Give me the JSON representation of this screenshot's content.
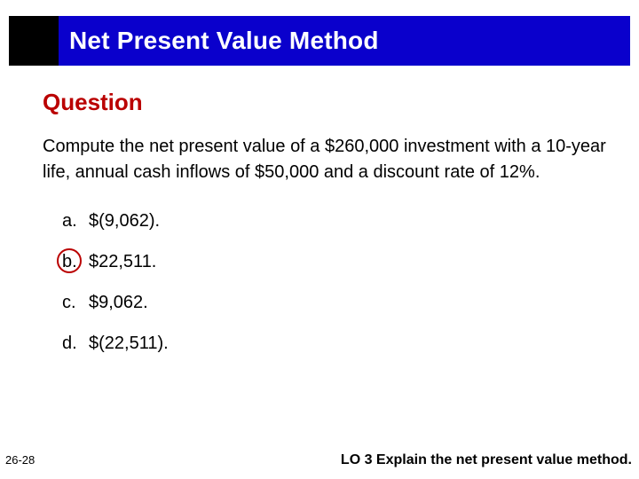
{
  "title_bar": {
    "background_color": "#0a00cc",
    "box_color": "#000000",
    "title": "Net Present Value Method",
    "title_color": "#ffffff",
    "title_fontsize": 28
  },
  "question": {
    "heading": "Question",
    "heading_color": "#ba0000",
    "heading_fontsize": 26,
    "text": "Compute the net present value of a $260,000 investment with a 10-year life, annual cash inflows of $50,000 and a discount rate of 12%.",
    "text_fontsize": 20
  },
  "options": {
    "a": {
      "letter": "a.",
      "value": "$(9,062)."
    },
    "b": {
      "letter": "b.",
      "value": "$22,511."
    },
    "c": {
      "letter": "c.",
      "value": "$9,062."
    },
    "d": {
      "letter": "d.",
      "value": "$(22,511)."
    }
  },
  "correct": {
    "index": "b",
    "circle_color": "#ba0000"
  },
  "footer": {
    "page": "26-28",
    "lo": "LO 3  Explain the net present value method."
  }
}
